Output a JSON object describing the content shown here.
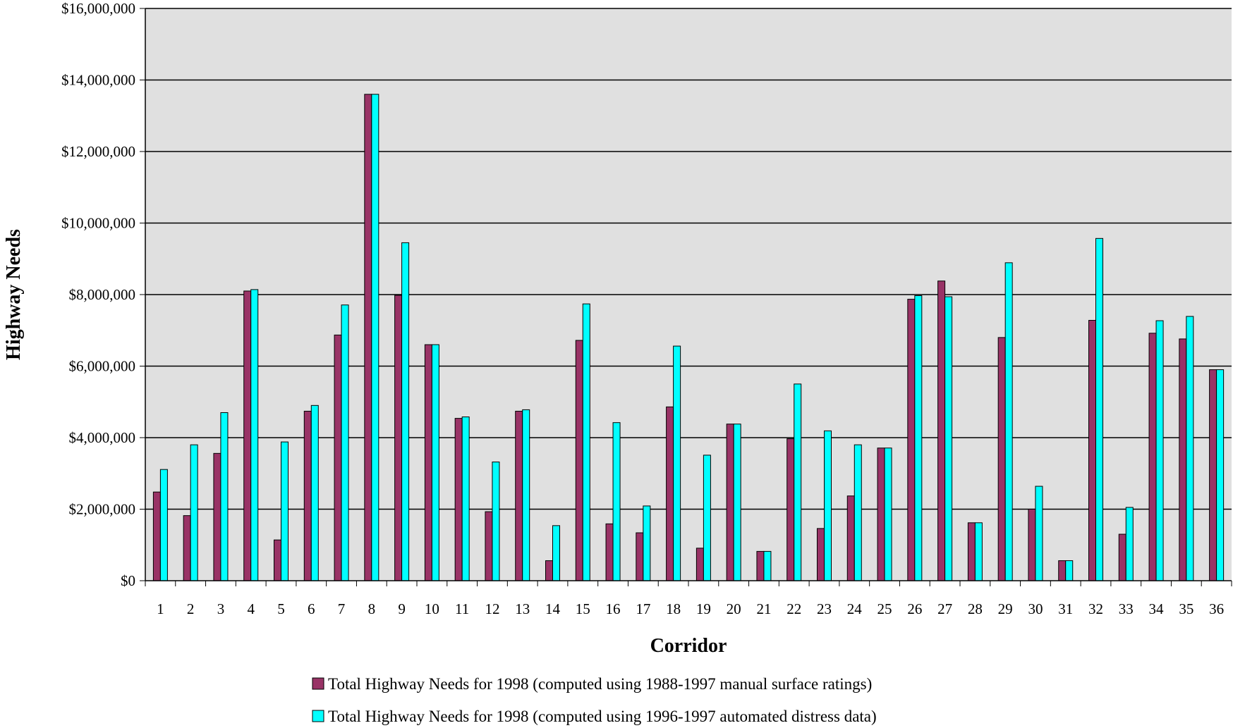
{
  "chart_data": {
    "type": "bar",
    "xlabel": "Corridor",
    "ylabel": "Highway Needs",
    "ylim": [
      0,
      16000000
    ],
    "y_ticks": [
      0,
      2000000,
      4000000,
      6000000,
      8000000,
      10000000,
      12000000,
      14000000,
      16000000
    ],
    "y_tick_labels": [
      "$0",
      "$2,000,000",
      "$4,000,000",
      "$6,000,000",
      "$8,000,000",
      "$10,000,000",
      "$12,000,000",
      "$14,000,000",
      "$16,000,000"
    ],
    "grid": true,
    "legend_position": "bottom",
    "plot_background": "#E0E0E0",
    "categories": [
      "1",
      "2",
      "3",
      "4",
      "5",
      "6",
      "7",
      "8",
      "9",
      "10",
      "11",
      "12",
      "13",
      "14",
      "15",
      "16",
      "17",
      "18",
      "19",
      "20",
      "21",
      "22",
      "23",
      "24",
      "25",
      "26",
      "27",
      "28",
      "29",
      "30",
      "31",
      "32",
      "33",
      "34",
      "35",
      "36"
    ],
    "series": [
      {
        "name": "Total Highway Needs for 1998 (computed using 1988-1997 manual surface ratings)",
        "color": "#993366",
        "values": [
          2480000,
          1820000,
          3560000,
          8100000,
          1140000,
          4740000,
          6870000,
          13600000,
          7980000,
          6600000,
          4540000,
          1930000,
          4740000,
          560000,
          6720000,
          1590000,
          1340000,
          4860000,
          910000,
          4380000,
          820000,
          3970000,
          1460000,
          2370000,
          3710000,
          7870000,
          8380000,
          1620000,
          6800000,
          2000000,
          560000,
          7280000,
          1300000,
          6920000,
          6760000,
          5900000
        ]
      },
      {
        "name": "Total Highway Needs for 1998 (computed using 1996-1997 automated distress data)",
        "color": "#00FFFF",
        "values": [
          3110000,
          3800000,
          4700000,
          8140000,
          3880000,
          4900000,
          7710000,
          13600000,
          9450000,
          6600000,
          4580000,
          3320000,
          4780000,
          1540000,
          7740000,
          4420000,
          2090000,
          6560000,
          3510000,
          4380000,
          820000,
          5500000,
          4190000,
          3800000,
          3710000,
          7970000,
          7940000,
          1620000,
          8890000,
          2640000,
          560000,
          9570000,
          2050000,
          7270000,
          7390000,
          5900000
        ]
      }
    ]
  }
}
